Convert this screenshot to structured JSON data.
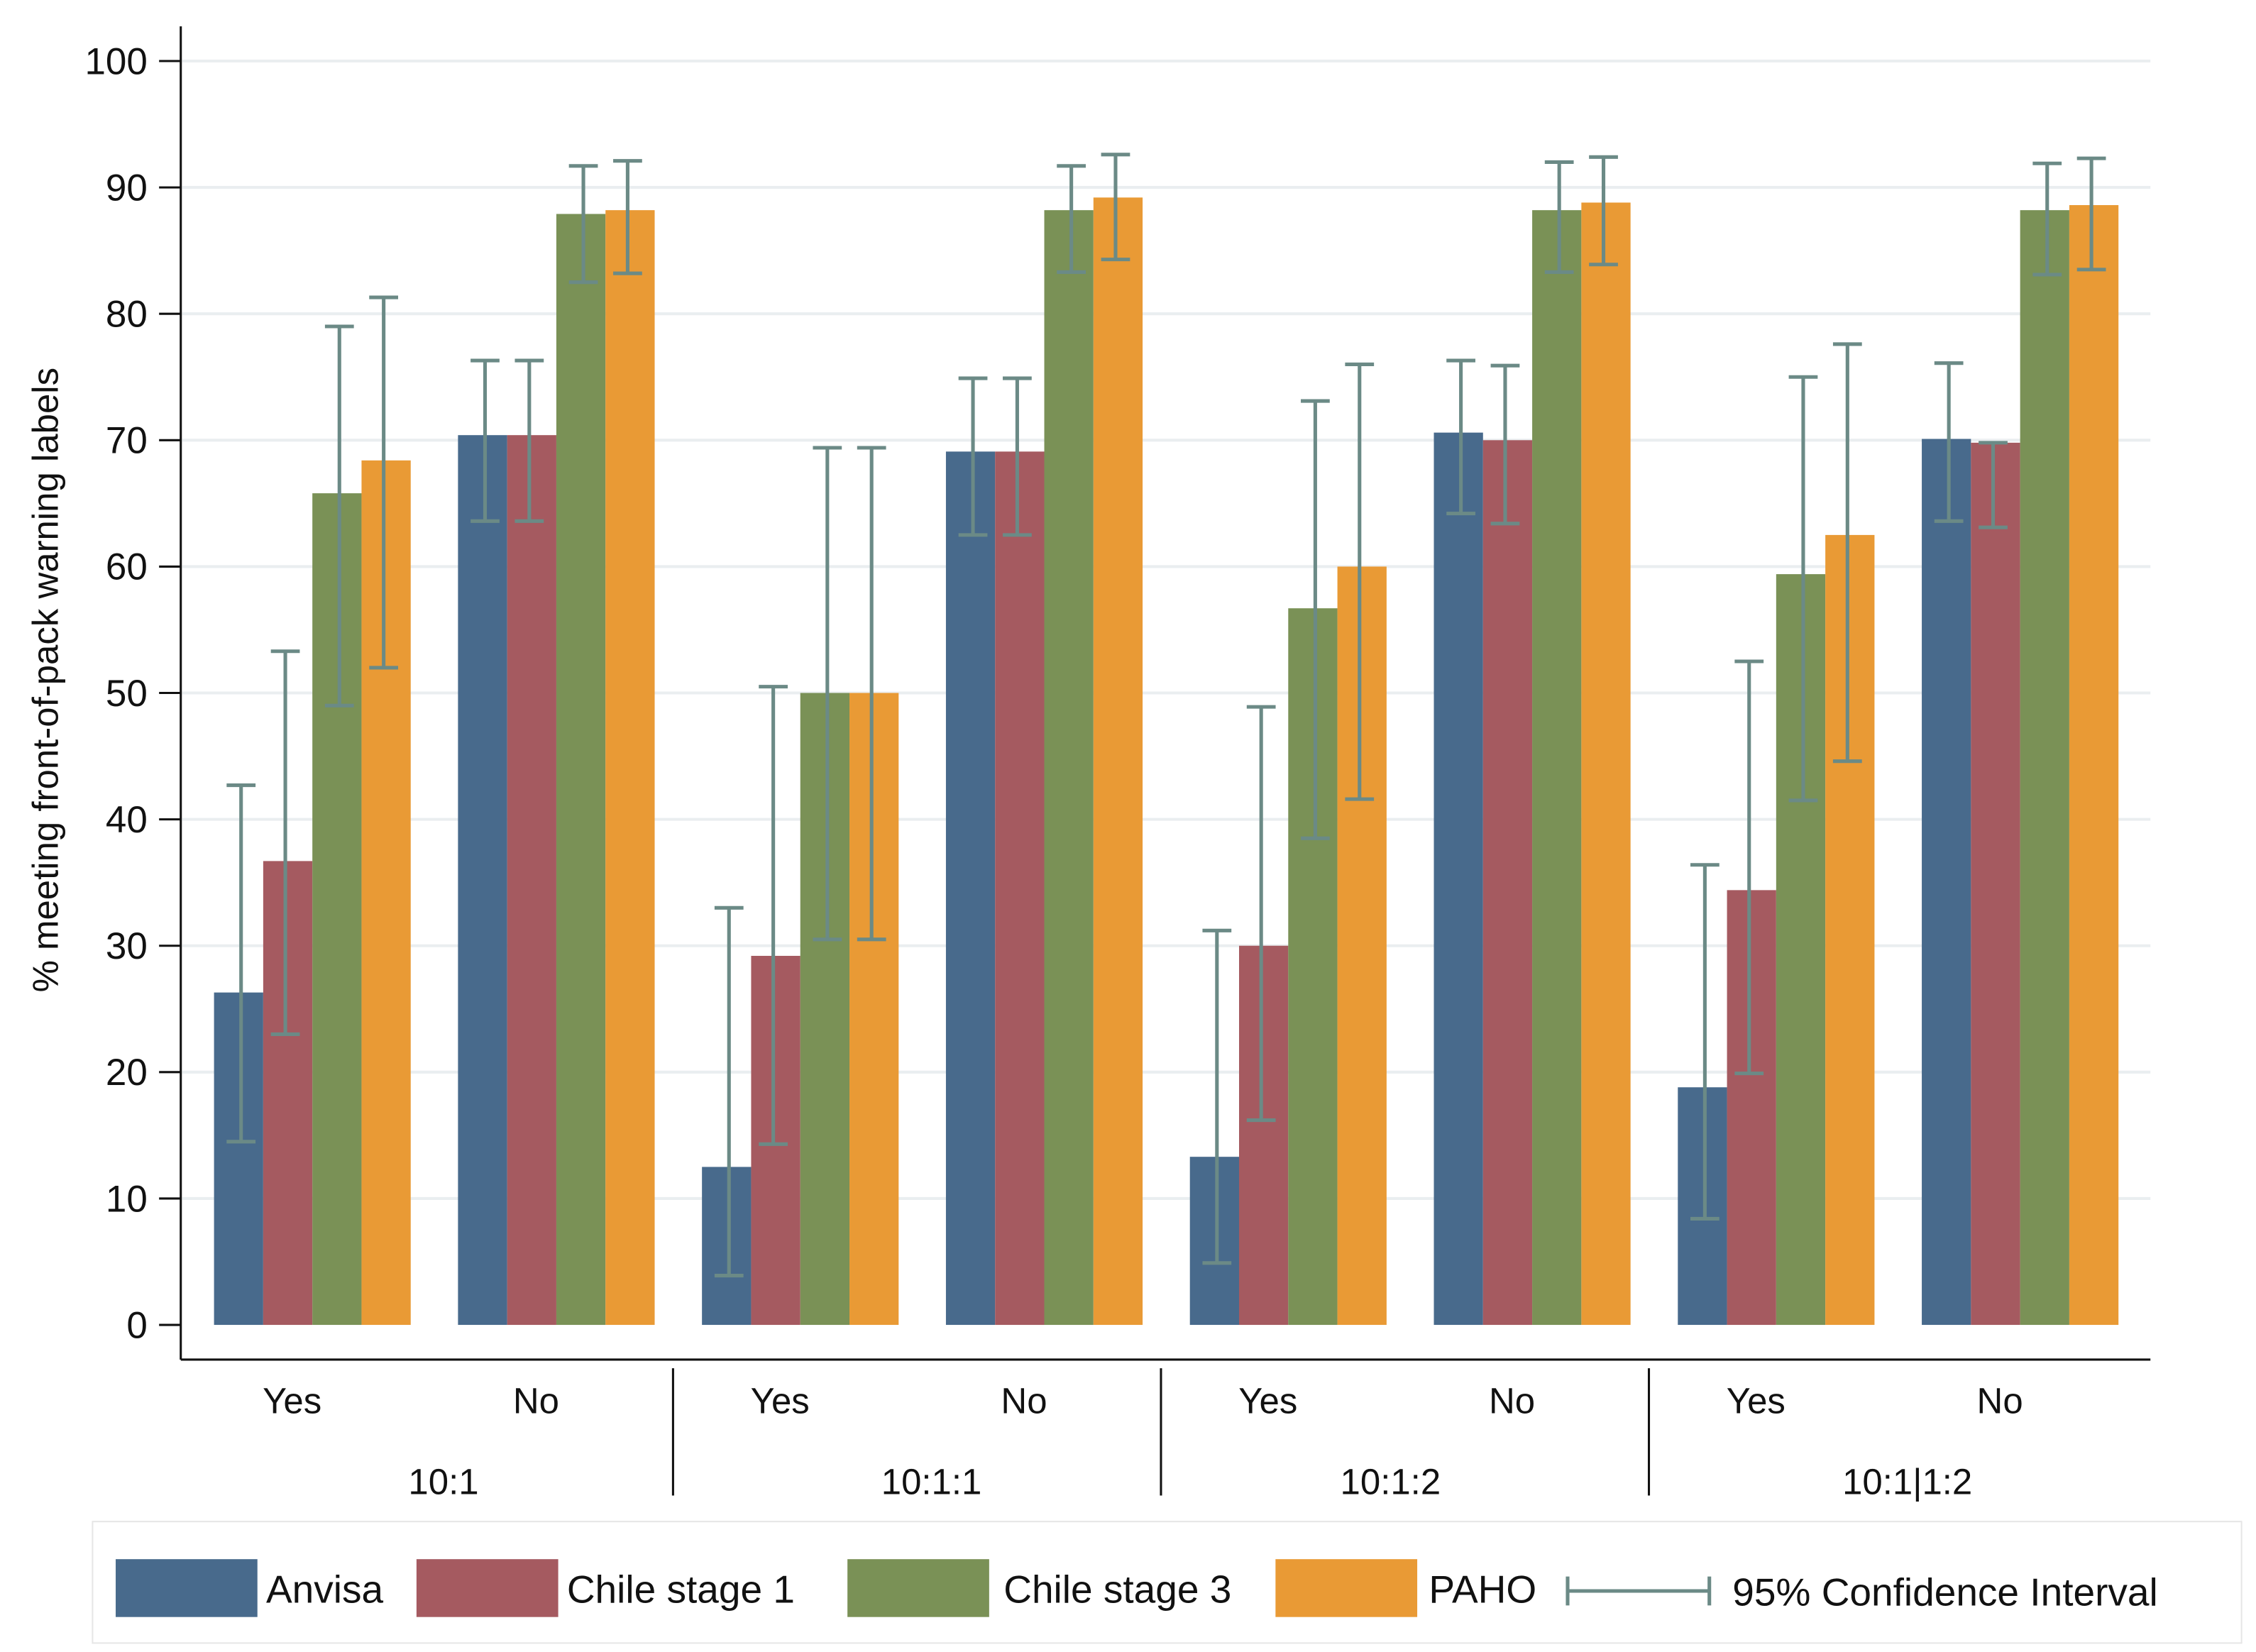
{
  "chart_data": {
    "type": "bar",
    "ylabel": "% meeting front-of-pack warning labels",
    "ylim": [
      0,
      100
    ],
    "yticks": [
      "0",
      "10",
      "20",
      "30",
      "40",
      "50",
      "60",
      "70",
      "80",
      "90",
      "100"
    ],
    "grid": true,
    "legend_position": "bottom",
    "groups": [
      {
        "label": "10:1",
        "subcategories": [
          "Yes",
          "No"
        ]
      },
      {
        "label": "10:1:1",
        "subcategories": [
          "Yes",
          "No"
        ]
      },
      {
        "label": "10:1:2",
        "subcategories": [
          "Yes",
          "No"
        ]
      },
      {
        "label": "10:1|1:2",
        "subcategories": [
          "Yes",
          "No"
        ]
      }
    ],
    "series": [
      {
        "name": "Anvisa",
        "color": "#486a8c",
        "values": [
          26.3,
          70.4,
          12.5,
          69.1,
          13.3,
          70.6,
          18.8,
          70.1
        ],
        "ci": [
          [
            14.5,
            42.7
          ],
          [
            63.6,
            76.3
          ],
          [
            3.9,
            33.0
          ],
          [
            62.5,
            74.9
          ],
          [
            4.9,
            31.2
          ],
          [
            64.2,
            76.3
          ],
          [
            8.4,
            36.4
          ],
          [
            63.6,
            76.1
          ]
        ]
      },
      {
        "name": "Chile stage 1",
        "color": "#a55a60",
        "values": [
          36.7,
          70.4,
          29.2,
          69.1,
          30.0,
          70.0,
          34.4,
          69.8
        ],
        "ci": [
          [
            23.0,
            53.3
          ],
          [
            63.6,
            76.3
          ],
          [
            14.3,
            50.5
          ],
          [
            62.5,
            74.9
          ],
          [
            16.2,
            48.9
          ],
          [
            63.4,
            75.9
          ],
          [
            19.9,
            52.5
          ],
          [
            63.1,
            69.8
          ]
        ]
      },
      {
        "name": "Chile stage 3",
        "color": "#7a9156",
        "values": [
          65.8,
          87.9,
          50.0,
          88.2,
          56.7,
          88.2,
          59.4,
          88.2
        ],
        "ci": [
          [
            49.0,
            79.0
          ],
          [
            82.5,
            91.7
          ],
          [
            30.5,
            69.4
          ],
          [
            83.3,
            91.7
          ],
          [
            38.5,
            73.1
          ],
          [
            83.3,
            92.0
          ],
          [
            41.5,
            75.0
          ],
          [
            83.1,
            91.9
          ]
        ]
      },
      {
        "name": "PAHO",
        "color": "#e99a35",
        "values": [
          68.4,
          88.2,
          50.0,
          89.2,
          60.0,
          88.8,
          62.5,
          88.6
        ],
        "ci": [
          [
            52.0,
            81.3
          ],
          [
            83.2,
            92.1
          ],
          [
            30.5,
            69.4
          ],
          [
            84.3,
            92.6
          ],
          [
            41.6,
            76.0
          ],
          [
            83.9,
            92.4
          ],
          [
            44.6,
            77.6
          ],
          [
            83.5,
            92.3
          ]
        ]
      }
    ],
    "ci_label": "95% Confidence Interval",
    "ci_color": "#6b8a86"
  }
}
